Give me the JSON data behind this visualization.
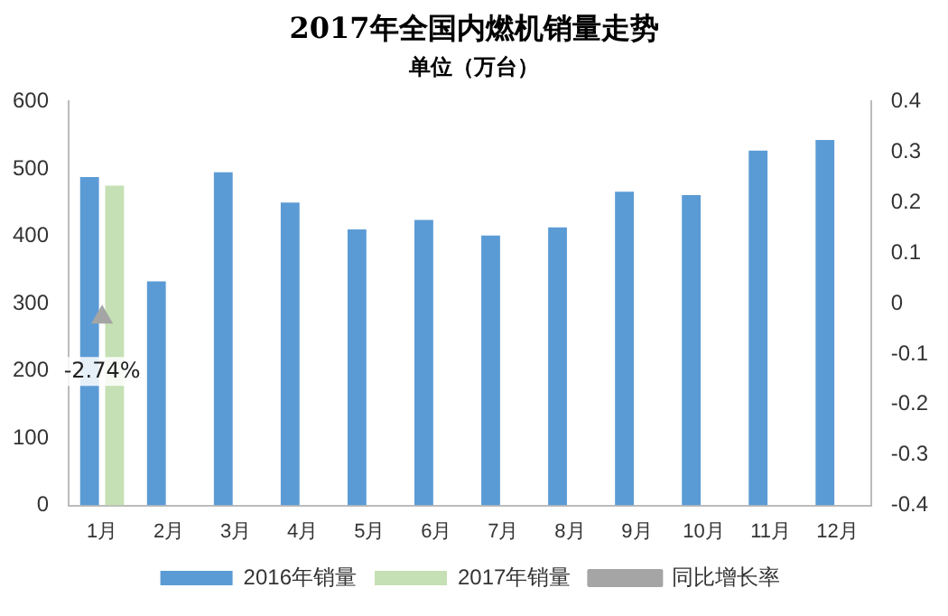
{
  "chart_data": {
    "type": "bar",
    "title": "2017年全国内燃机销量走势",
    "subtitle": "单位（万台）",
    "categories": [
      "1月",
      "2月",
      "3月",
      "4月",
      "5月",
      "6月",
      "7月",
      "8月",
      "9月",
      "10月",
      "11月",
      "12月"
    ],
    "series": [
      {
        "name": "2016年销量",
        "color": "#5b9bd5",
        "values": [
          488,
          333,
          495,
          450,
          410,
          424,
          401,
          413,
          466,
          461,
          527,
          543
        ]
      },
      {
        "name": "2017年销量",
        "color": "#c5e0b4",
        "values": [
          475,
          null,
          null,
          null,
          null,
          null,
          null,
          null,
          null,
          null,
          null,
          null
        ]
      },
      {
        "name": "同比增长率",
        "type": "line",
        "axis": "y2",
        "color": "#a5a5a5",
        "marker": "triangle",
        "values": [
          -0.0274,
          null,
          null,
          null,
          null,
          null,
          null,
          null,
          null,
          null,
          null,
          null
        ],
        "value_labels": [
          "-2.74%",
          null,
          null,
          null,
          null,
          null,
          null,
          null,
          null,
          null,
          null,
          null
        ]
      }
    ],
    "ylim": [
      0,
      600
    ],
    "yticks": [
      0,
      100,
      200,
      300,
      400,
      500,
      600
    ],
    "y2lim": [
      -0.4,
      0.4
    ],
    "y2ticks": [
      -0.4,
      -0.3,
      -0.2,
      -0.1,
      0,
      0.1,
      0.2,
      0.3,
      0.4
    ],
    "grid": false,
    "legend": "bottom"
  }
}
